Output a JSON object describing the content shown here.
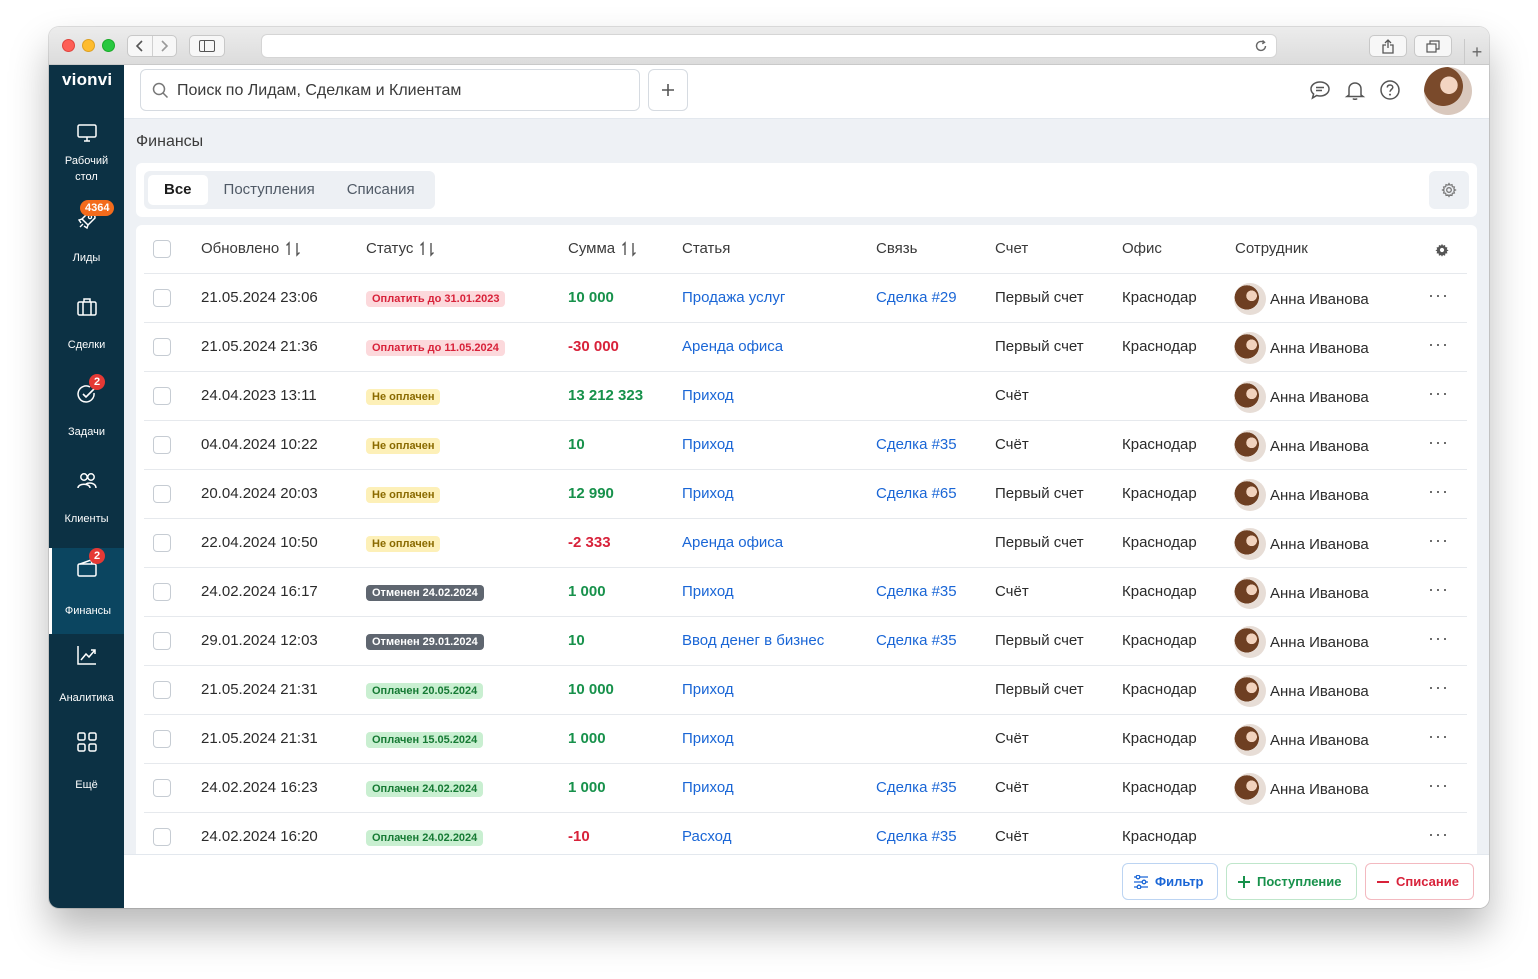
{
  "app": {
    "logo": "vionvi"
  },
  "header": {
    "search_placeholder": "Поиск по Лидам, Сделкам и Клиентам",
    "icons": [
      "chat-icon",
      "bell-icon",
      "help-icon"
    ]
  },
  "sidebar": {
    "items": [
      {
        "id": "desktop",
        "label": "Рабочий стол",
        "label_lines": [
          "Рабочий",
          "стол"
        ],
        "icon": "monitor-icon",
        "badge": null
      },
      {
        "id": "leads",
        "label": "Лиды",
        "icon": "rocket-icon",
        "badge": "4364"
      },
      {
        "id": "deals",
        "label": "Сделки",
        "icon": "briefcase-icon",
        "badge": null
      },
      {
        "id": "tasks",
        "label": "Задачи",
        "icon": "check-circle-icon",
        "badge": "2"
      },
      {
        "id": "clients",
        "label": "Клиенты",
        "icon": "users-icon",
        "badge": null
      },
      {
        "id": "finance",
        "label": "Финансы",
        "icon": "wallet-icon",
        "badge": "2",
        "active": true
      },
      {
        "id": "analytics",
        "label": "Аналитика",
        "icon": "chart-icon",
        "badge": null
      },
      {
        "id": "more",
        "label": "Ещё",
        "icon": "grid-icon",
        "badge": null
      }
    ]
  },
  "page": {
    "title": "Финансы",
    "tabs": [
      {
        "label": "Все",
        "active": true
      },
      {
        "label": "Поступления",
        "active": false
      },
      {
        "label": "Списания",
        "active": false
      }
    ]
  },
  "table": {
    "columns": {
      "updated": "Обновлено",
      "status": "Статус",
      "amount": "Сумма",
      "article": "Статья",
      "link": "Связь",
      "account": "Счет",
      "office": "Офис",
      "employee": "Сотрудник"
    },
    "rows": [
      {
        "updated": "21.05.2024 23:06",
        "status": "Оплатить до 31.01.2023",
        "status_type": "red",
        "amount": "10 000",
        "amount_sign": "pos",
        "article": "Продажа услуг",
        "link": "Сделка #29",
        "account": "Первый счет",
        "office": "Краснодар",
        "employee": "Анна Иванова"
      },
      {
        "updated": "21.05.2024 21:36",
        "status": "Оплатить до 11.05.2024",
        "status_type": "red",
        "amount": "-30 000",
        "amount_sign": "neg",
        "article": "Аренда офиса",
        "link": "",
        "account": "Первый счет",
        "office": "Краснодар",
        "employee": "Анна Иванова"
      },
      {
        "updated": "24.04.2023 13:11",
        "status": "Не оплачен",
        "status_type": "yellow",
        "amount": "13 212 323",
        "amount_sign": "pos",
        "article": "Приход",
        "link": "",
        "account": "Счёт",
        "office": "",
        "employee": "Анна Иванова"
      },
      {
        "updated": "04.04.2024 10:22",
        "status": "Не оплачен",
        "status_type": "yellow",
        "amount": "10",
        "amount_sign": "pos",
        "article": "Приход",
        "link": "Сделка #35",
        "account": "Счёт",
        "office": "Краснодар",
        "employee": "Анна Иванова"
      },
      {
        "updated": "20.04.2024 20:03",
        "status": "Не оплачен",
        "status_type": "yellow",
        "amount": "12 990",
        "amount_sign": "pos",
        "article": "Приход",
        "link": "Сделка #65",
        "account": "Первый счет",
        "office": "Краснодар",
        "employee": "Анна Иванова"
      },
      {
        "updated": "22.04.2024 10:50",
        "status": "Не оплачен",
        "status_type": "yellow",
        "amount": "-2 333",
        "amount_sign": "neg",
        "article": "Аренда офиса",
        "link": "",
        "account": "Первый счет",
        "office": "Краснодар",
        "employee": "Анна Иванова"
      },
      {
        "updated": "24.02.2024 16:17",
        "status": "Отменен 24.02.2024",
        "status_type": "dark",
        "amount": "1 000",
        "amount_sign": "pos",
        "article": "Приход",
        "link": "Сделка #35",
        "account": "Счёт",
        "office": "Краснодар",
        "employee": "Анна Иванова"
      },
      {
        "updated": "29.01.2024 12:03",
        "status": "Отменен 29.01.2024",
        "status_type": "dark",
        "amount": "10",
        "amount_sign": "pos",
        "article": "Ввод денег в бизнес",
        "link": "Сделка #35",
        "account": "Первый счет",
        "office": "Краснодар",
        "employee": "Анна Иванова"
      },
      {
        "updated": "21.05.2024 21:31",
        "status": "Оплачен 20.05.2024",
        "status_type": "green",
        "amount": "10 000",
        "amount_sign": "pos",
        "article": "Приход",
        "link": "",
        "account": "Первый счет",
        "office": "Краснодар",
        "employee": "Анна Иванова"
      },
      {
        "updated": "21.05.2024 21:31",
        "status": "Оплачен 15.05.2024",
        "status_type": "green",
        "amount": "1 000",
        "amount_sign": "pos",
        "article": "Приход",
        "link": "",
        "account": "Счёт",
        "office": "Краснодар",
        "employee": "Анна Иванова"
      },
      {
        "updated": "24.02.2024 16:23",
        "status": "Оплачен 24.02.2024",
        "status_type": "green",
        "amount": "1 000",
        "amount_sign": "pos",
        "article": "Приход",
        "link": "Сделка #35",
        "account": "Счёт",
        "office": "Краснодар",
        "employee": "Анна Иванова"
      },
      {
        "updated": "24.02.2024 16:20",
        "status": "Оплачен 24.02.2024",
        "status_type": "green",
        "amount": "-10",
        "amount_sign": "neg",
        "article": "Расход",
        "link": "Сделка #35",
        "account": "Счёт",
        "office": "Краснодар",
        "employee": ""
      }
    ]
  },
  "footer": {
    "filter_label": "Фильтр",
    "income_label": "Поступление",
    "expense_label": "Списание"
  },
  "colors": {
    "sidebar_bg": "#0c3144",
    "link": "#1a66d6",
    "positive": "#17914b",
    "negative": "#d8223a",
    "badge_orange": "#f36b1c",
    "badge_red": "#e53935"
  }
}
